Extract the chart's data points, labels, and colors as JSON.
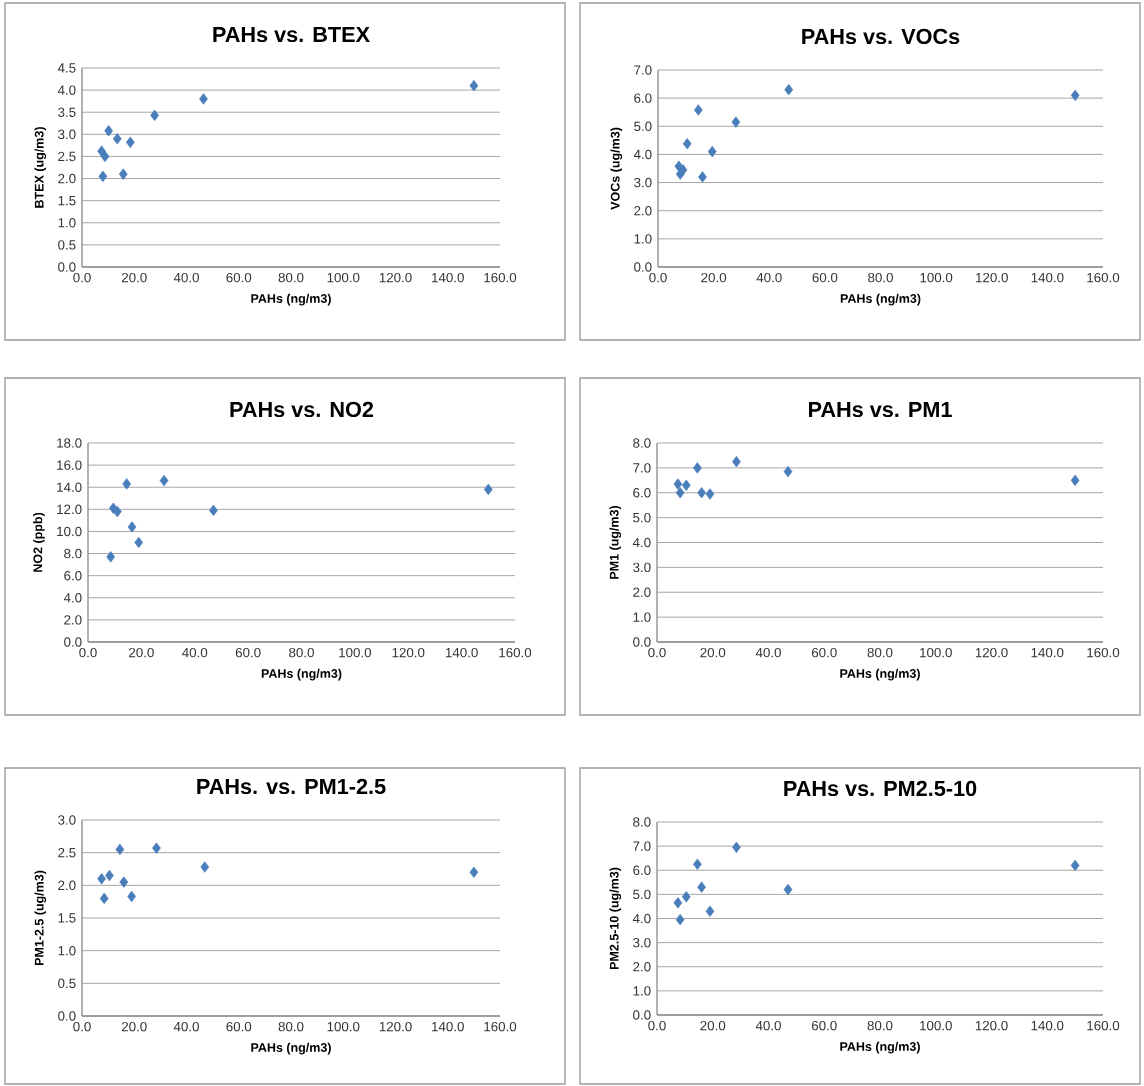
{
  "chart_data": [
    {
      "type": "scatter",
      "title": "PAHs vs. BTEX",
      "xlabel": "PAHs (ng/m3)",
      "ylabel": "BTEX (ug/m3)",
      "x": [
        7.5,
        8.0,
        8.8,
        10.2,
        13.5,
        15.8,
        18.5,
        27.8,
        46.5,
        150
      ],
      "values": [
        2.62,
        2.05,
        2.5,
        3.08,
        2.9,
        2.1,
        2.82,
        3.43,
        3.8,
        4.1
      ],
      "color": "#4a7ebb",
      "marker": "diamond",
      "grid": "y",
      "xlim": [
        0,
        160
      ],
      "ylim": [
        0,
        4.5
      ],
      "xticks": [
        {
          "value": 0,
          "label": "0.0"
        },
        {
          "value": 20,
          "label": "20.0"
        },
        {
          "value": 40,
          "label": "40.0"
        },
        {
          "value": 60,
          "label": "60.0"
        },
        {
          "value": 80,
          "label": "80.0"
        },
        {
          "value": 100,
          "label": "100.0"
        },
        {
          "value": 120,
          "label": "120.0"
        },
        {
          "value": 140,
          "label": "140.0"
        },
        {
          "value": 160,
          "label": "160.0"
        }
      ],
      "yticks": [
        {
          "value": 0,
          "label": "0.0"
        },
        0.5,
        {
          "value": 1,
          "label": "1.0"
        },
        1.5,
        {
          "value": 2,
          "label": "2.0"
        },
        2.5,
        {
          "value": 3,
          "label": "3.0"
        },
        3.5,
        {
          "value": 4,
          "label": "4.0"
        },
        4.5
      ]
    },
    {
      "type": "scatter",
      "title": "PAHs vs. VOCs",
      "xlabel": "PAHs (ng/m3)",
      "ylabel": "VOCs (ug/m3)",
      "x": [
        7.5,
        8.0,
        9.0,
        10.5,
        14.5,
        16.0,
        19.5,
        28.0,
        47.0,
        150
      ],
      "values": [
        3.58,
        3.3,
        3.45,
        4.38,
        5.58,
        3.2,
        4.1,
        5.15,
        6.3,
        6.1
      ],
      "color": "#4a7ebb",
      "marker": "diamond",
      "grid": "y",
      "xlim": [
        0,
        160
      ],
      "ylim": [
        0,
        7
      ],
      "xticks": [
        {
          "value": 0,
          "label": "0.0"
        },
        {
          "value": 20,
          "label": "20.0"
        },
        {
          "value": 40,
          "label": "40.0"
        },
        {
          "value": 60,
          "label": "60.0"
        },
        {
          "value": 80,
          "label": "80.0"
        },
        {
          "value": 100,
          "label": "100.0"
        },
        {
          "value": 120,
          "label": "120.0"
        },
        {
          "value": 140,
          "label": "140.0"
        },
        {
          "value": 160,
          "label": "160.0"
        }
      ],
      "yticks": [
        {
          "value": 0,
          "label": "0.0"
        },
        {
          "value": 1,
          "label": "1.0"
        },
        {
          "value": 2,
          "label": "2.0"
        },
        {
          "value": 3,
          "label": "3.0"
        },
        {
          "value": 4,
          "label": "4.0"
        },
        {
          "value": 5,
          "label": "5.0"
        },
        {
          "value": 6,
          "label": "6.0"
        },
        {
          "value": 7,
          "label": "7.0"
        }
      ]
    },
    {
      "type": "scatter",
      "title": "PAHs vs. NO2",
      "xlabel": "PAHs (ng/m3)",
      "ylabel": "NO2 (ppb)",
      "x": [
        8.5,
        9.5,
        11.0,
        14.5,
        16.5,
        19.0,
        28.5,
        47.0,
        150
      ],
      "values": [
        7.7,
        12.1,
        11.8,
        14.3,
        10.4,
        9.0,
        14.6,
        11.9,
        13.8
      ],
      "color": "#4a7ebb",
      "marker": "diamond",
      "grid": "y",
      "xlim": [
        0,
        160
      ],
      "ylim": [
        0,
        18
      ],
      "xticks": [
        {
          "value": 0,
          "label": "0.0"
        },
        {
          "value": 20,
          "label": "20.0"
        },
        {
          "value": 40,
          "label": "40.0"
        },
        {
          "value": 60,
          "label": "60.0"
        },
        {
          "value": 80,
          "label": "80.0"
        },
        {
          "value": 100,
          "label": "100.0"
        },
        {
          "value": 120,
          "label": "120.0"
        },
        {
          "value": 140,
          "label": "140.0"
        },
        {
          "value": 160,
          "label": "160.0"
        }
      ],
      "yticks": [
        {
          "value": 0,
          "label": "0.0"
        },
        {
          "value": 2,
          "label": "2.0"
        },
        {
          "value": 4,
          "label": "4.0"
        },
        {
          "value": 6,
          "label": "6.0"
        },
        {
          "value": 8,
          "label": "8.0"
        },
        {
          "value": 10,
          "label": "10.0"
        },
        {
          "value": 12,
          "label": "12.0"
        },
        {
          "value": 14,
          "label": "14.0"
        },
        {
          "value": 16,
          "label": "16.0"
        },
        {
          "value": 18,
          "label": "18.0"
        }
      ]
    },
    {
      "type": "scatter",
      "title": "PAHs vs. PM1",
      "xlabel": "PAHs (ng/m3)",
      "ylabel": "PM1 (ug/m3)",
      "x": [
        7.5,
        8.3,
        10.5,
        14.5,
        16.0,
        19.0,
        28.5,
        47.0,
        150
      ],
      "values": [
        6.35,
        6.0,
        6.3,
        7.0,
        6.0,
        5.95,
        7.25,
        6.85,
        6.5
      ],
      "color": "#4a7ebb",
      "marker": "diamond",
      "grid": "y",
      "xlim": [
        0,
        160
      ],
      "ylim": [
        0,
        8
      ],
      "xticks": [
        {
          "value": 0,
          "label": "0.0"
        },
        {
          "value": 20,
          "label": "20.0"
        },
        {
          "value": 40,
          "label": "40.0"
        },
        {
          "value": 60,
          "label": "60.0"
        },
        {
          "value": 80,
          "label": "80.0"
        },
        {
          "value": 100,
          "label": "100.0"
        },
        {
          "value": 120,
          "label": "120.0"
        },
        {
          "value": 140,
          "label": "140.0"
        },
        {
          "value": 160,
          "label": "160.0"
        }
      ],
      "yticks": [
        {
          "value": 0,
          "label": "0.0"
        },
        {
          "value": 1,
          "label": "1.0"
        },
        {
          "value": 2,
          "label": "2.0"
        },
        {
          "value": 3,
          "label": "3.0"
        },
        {
          "value": 4,
          "label": "4.0"
        },
        {
          "value": 5,
          "label": "5.0"
        },
        {
          "value": 6,
          "label": "6.0"
        },
        {
          "value": 7,
          "label": "7.0"
        },
        {
          "value": 8,
          "label": "8.0"
        }
      ]
    },
    {
      "type": "scatter",
      "title": "PAHs. vs. PM1-2.5",
      "xlabel": "PAHs (ng/m3)",
      "ylabel": "PM1-2.5 (ug/m3)",
      "x": [
        7.5,
        8.5,
        10.5,
        14.5,
        16.0,
        19.0,
        28.5,
        47.0,
        150
      ],
      "values": [
        2.1,
        1.8,
        2.15,
        2.55,
        2.05,
        1.83,
        2.57,
        2.28,
        2.2
      ],
      "color": "#4a7ebb",
      "marker": "diamond",
      "grid": "y",
      "xlim": [
        0,
        160
      ],
      "ylim": [
        0,
        3
      ],
      "xticks": [
        {
          "value": 0,
          "label": "0.0"
        },
        {
          "value": 20,
          "label": "20.0"
        },
        {
          "value": 40,
          "label": "40.0"
        },
        {
          "value": 60,
          "label": "60.0"
        },
        {
          "value": 80,
          "label": "80.0"
        },
        {
          "value": 100,
          "label": "100.0"
        },
        {
          "value": 120,
          "label": "120.0"
        },
        {
          "value": 140,
          "label": "140.0"
        },
        {
          "value": 160,
          "label": "160.0"
        }
      ],
      "yticks": [
        {
          "value": 0,
          "label": "0.0"
        },
        0.5,
        {
          "value": 1,
          "label": "1.0"
        },
        1.5,
        {
          "value": 2,
          "label": "2.0"
        },
        2.5,
        {
          "value": 3,
          "label": "3.0"
        }
      ]
    },
    {
      "type": "scatter",
      "title": "PAHs vs. PM2.5-10",
      "xlabel": "PAHs (ng/m3)",
      "ylabel": "PM2.5-10 (ug/m3)",
      "x": [
        7.5,
        8.3,
        10.5,
        14.5,
        16.0,
        19.0,
        28.5,
        47.0,
        150
      ],
      "values": [
        4.65,
        3.95,
        4.9,
        6.25,
        5.3,
        4.3,
        6.95,
        5.2,
        6.2
      ],
      "color": "#4a7ebb",
      "marker": "diamond",
      "grid": "y",
      "xlim": [
        0,
        160
      ],
      "ylim": [
        0,
        8
      ],
      "xticks": [
        {
          "value": 0,
          "label": "0.0"
        },
        {
          "value": 20,
          "label": "20.0"
        },
        {
          "value": 40,
          "label": "40.0"
        },
        {
          "value": 60,
          "label": "60.0"
        },
        {
          "value": 80,
          "label": "80.0"
        },
        {
          "value": 100,
          "label": "100.0"
        },
        {
          "value": 120,
          "label": "120.0"
        },
        {
          "value": 140,
          "label": "140.0"
        },
        {
          "value": 160,
          "label": "160.0"
        }
      ],
      "yticks": [
        {
          "value": 0,
          "label": "0.0"
        },
        {
          "value": 1,
          "label": "1.0"
        },
        {
          "value": 2,
          "label": "2.0"
        },
        {
          "value": 3,
          "label": "3.0"
        },
        {
          "value": 4,
          "label": "4.0"
        },
        {
          "value": 5,
          "label": "5.0"
        },
        {
          "value": 6,
          "label": "6.0"
        },
        {
          "value": 7,
          "label": "7.0"
        },
        {
          "value": 8,
          "label": "8.0"
        }
      ]
    }
  ]
}
